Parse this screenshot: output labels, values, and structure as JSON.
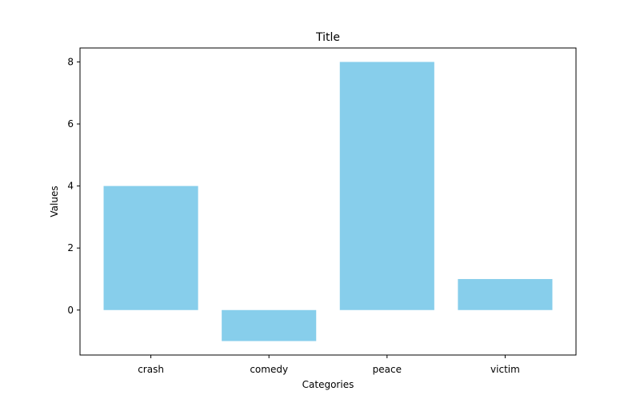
{
  "chart_data": {
    "type": "bar",
    "title": "Title",
    "xlabel": "Categories",
    "ylabel": "Values",
    "categories": [
      "crash",
      "comedy",
      "peace",
      "victim"
    ],
    "values": [
      4,
      -1,
      8,
      1
    ],
    "ylim": [
      -1.45,
      8.45
    ],
    "yticks": [
      0,
      2,
      4,
      6,
      8
    ],
    "bar_color": "#87CEEB",
    "grid": false,
    "legend": false
  }
}
